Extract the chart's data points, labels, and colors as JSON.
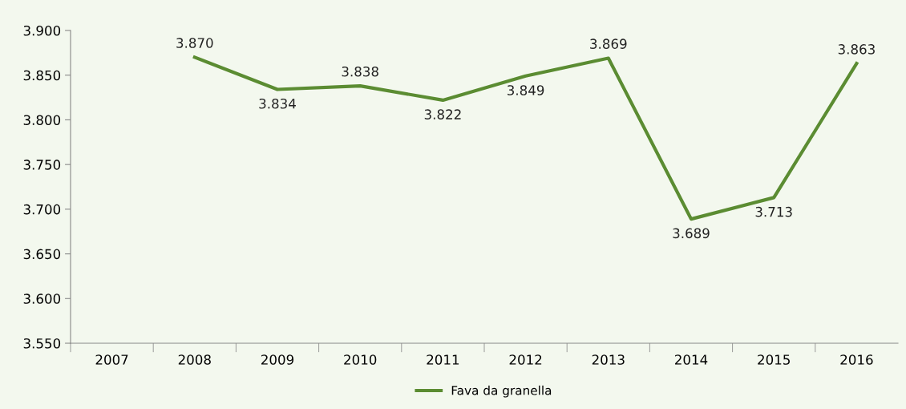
{
  "chart_data": {
    "type": "line",
    "categories": [
      "2007",
      "2008",
      "2009",
      "2010",
      "2011",
      "2012",
      "2013",
      "2014",
      "2015",
      "2016"
    ],
    "series": [
      {
        "name": "Fava da granella",
        "color": "#5b8c32",
        "values": [
          null,
          3870,
          3834,
          3838,
          3822,
          3849,
          3869,
          3689,
          3713,
          3863
        ],
        "value_labels": [
          null,
          "3.870",
          "3.834",
          "3.838",
          "3.822",
          "3.849",
          "3.869",
          "3.689",
          "3.713",
          "3.863"
        ]
      }
    ],
    "ylim": [
      3550,
      3900
    ],
    "yticks": [
      {
        "value": 3550,
        "label": "3.550"
      },
      {
        "value": 3600,
        "label": "3.600"
      },
      {
        "value": 3650,
        "label": "3.650"
      },
      {
        "value": 3700,
        "label": "3.700"
      },
      {
        "value": 3750,
        "label": "3.750"
      },
      {
        "value": 3800,
        "label": "3.800"
      },
      {
        "value": 3850,
        "label": "3.850"
      },
      {
        "value": 3900,
        "label": "3.900"
      }
    ],
    "grid": false,
    "legend": "bottom",
    "marker": "none",
    "line_style": "solid"
  }
}
